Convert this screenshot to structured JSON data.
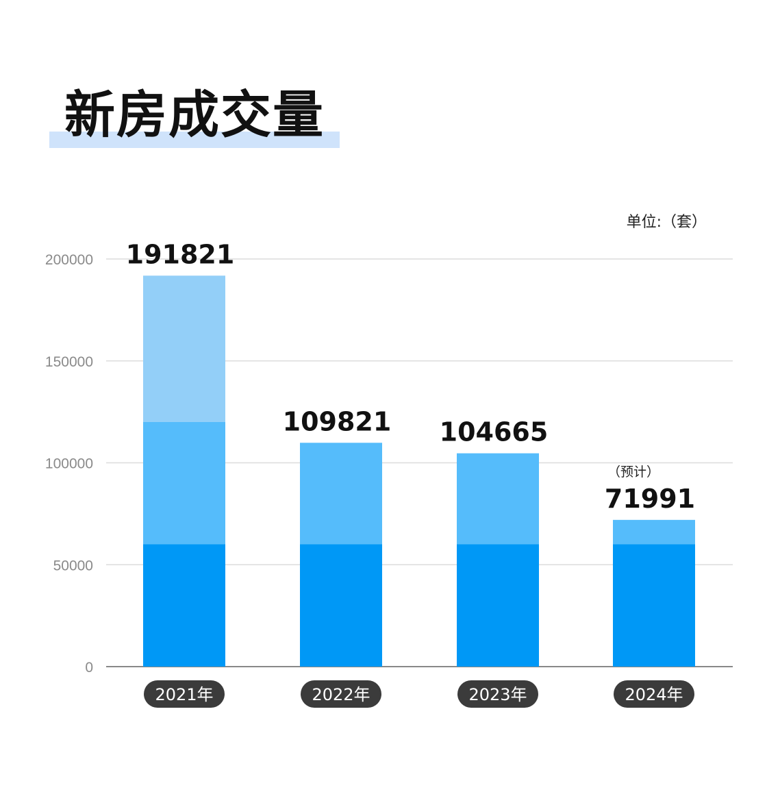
{
  "title": "新房成交量",
  "unit_label": "单位:（套）",
  "colors": {
    "segment_dark": "#0098f6",
    "segment_mid": "#55bcfb",
    "segment_light": "#93cff8",
    "grid": "#dcdcdc",
    "pill": "#3b3b3b",
    "title_highlight": "#cfe3fb"
  },
  "chart_data": {
    "type": "bar",
    "stacked": true,
    "title": "新房成交量",
    "unit": "单位:（套）",
    "categories": [
      "2021年",
      "2022年",
      "2023年",
      "2024年"
    ],
    "totals": [
      191821,
      109821,
      104665,
      71991
    ],
    "value_labels": [
      "191821",
      "109821",
      "104665",
      "71991"
    ],
    "notes": [
      "",
      "",
      "",
      "（预计）"
    ],
    "segments": [
      [
        60000,
        60000,
        71821
      ],
      [
        60000,
        49821
      ],
      [
        60000,
        44665
      ],
      [
        60000,
        11991
      ]
    ],
    "ylim": [
      0,
      200000
    ],
    "yticks": [
      0,
      50000,
      100000,
      150000,
      200000
    ],
    "grid": true,
    "legend": "none"
  }
}
